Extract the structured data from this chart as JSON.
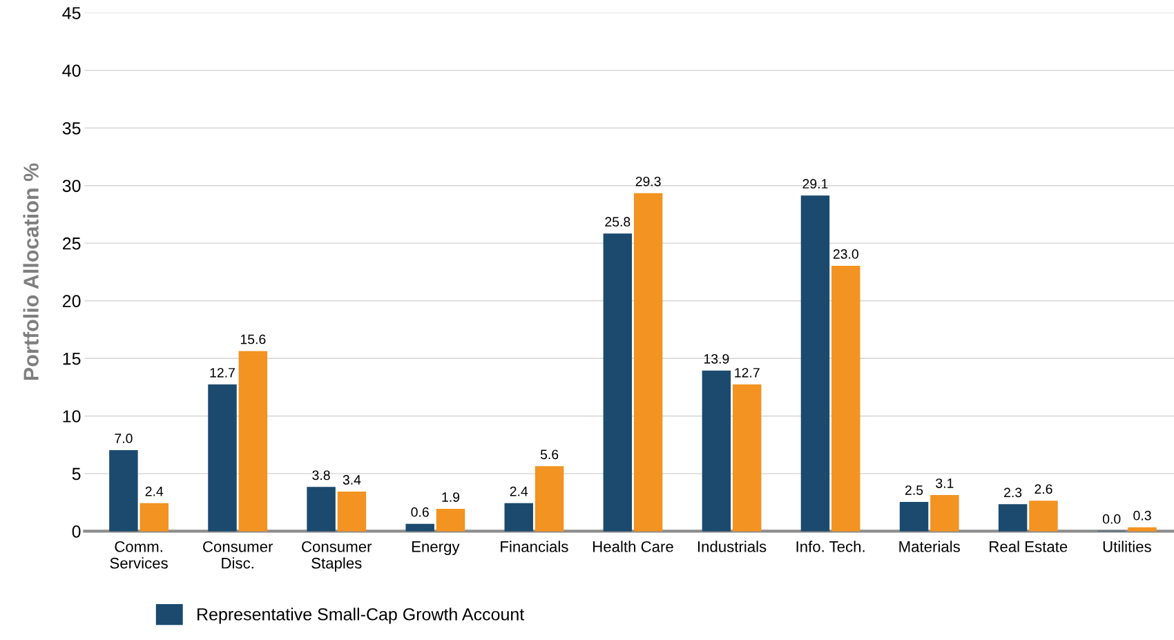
{
  "chart_data": {
    "type": "bar",
    "ylabel": "Portfolio Allocation %",
    "categories": [
      "Comm.\nServices",
      "Consumer\nDisc.",
      "Consumer\nStaples",
      "Energy",
      "Financials",
      "Health Care",
      "Industrials",
      "Info. Tech.",
      "Materials",
      "Real Estate",
      "Utilities"
    ],
    "series": [
      {
        "name": "Representative Small-Cap Growth Account",
        "color": "#1b4a6e",
        "values": [
          7.0,
          12.7,
          3.8,
          0.6,
          2.4,
          25.8,
          13.9,
          29.1,
          2.5,
          2.3,
          0.0
        ],
        "value_labels": [
          "7.0",
          "12.7",
          "3.8",
          "0.6",
          "2.4",
          "25.8",
          "13.9",
          "29.1",
          "2.5",
          "2.3",
          "0.0"
        ]
      },
      {
        "color": "#f39321",
        "values": [
          2.4,
          15.6,
          3.4,
          1.9,
          5.6,
          29.3,
          12.7,
          23.0,
          3.1,
          2.6,
          0.3
        ],
        "value_labels": [
          "2.4",
          "15.6",
          "3.4",
          "1.9",
          "5.6",
          "29.3",
          "12.7",
          "23.0",
          "3.1",
          "2.6",
          "0.3"
        ]
      }
    ],
    "ylim": [
      0,
      45
    ],
    "yticks": [
      0,
      5,
      10,
      15,
      20,
      25,
      30,
      35,
      40,
      45
    ],
    "grid": "y",
    "legend": "bottom"
  }
}
